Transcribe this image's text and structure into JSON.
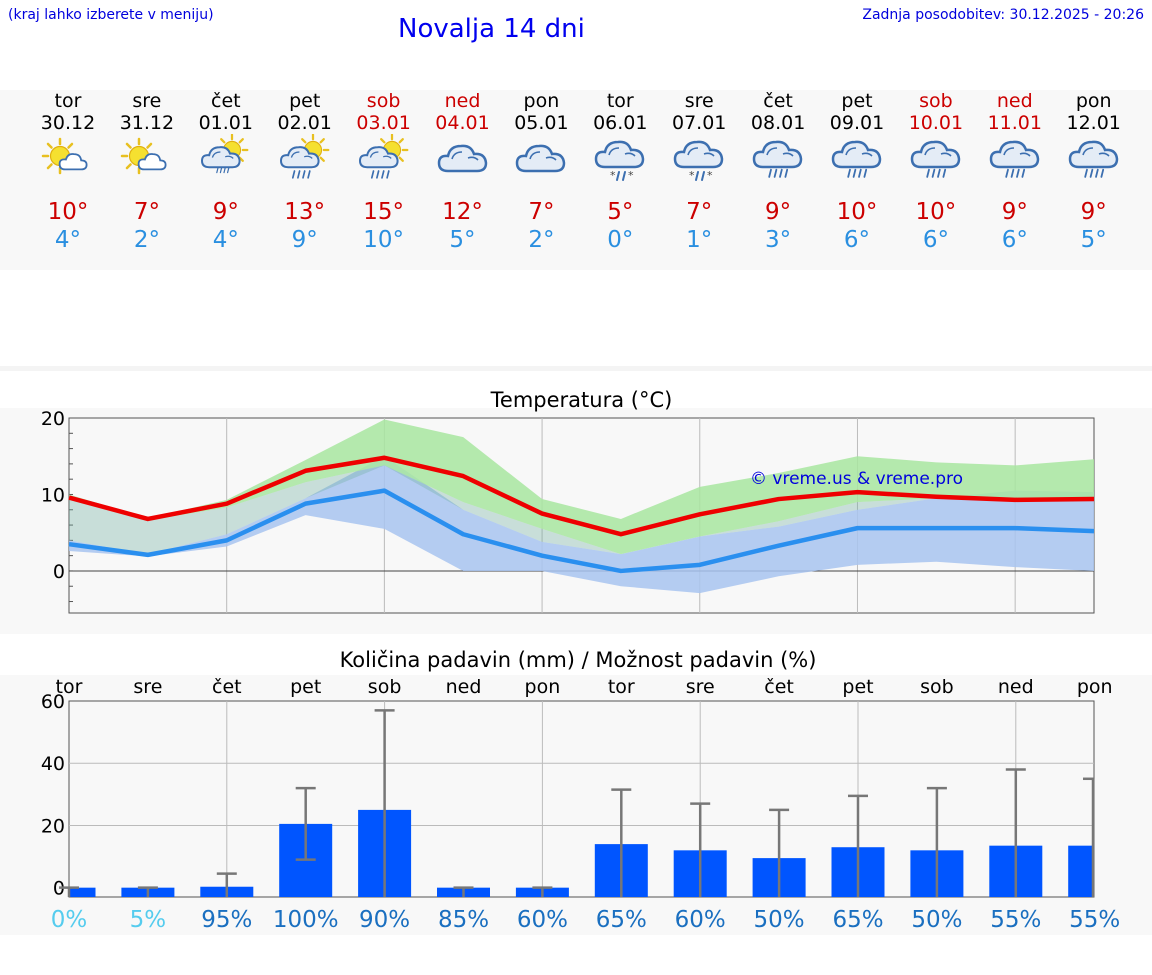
{
  "header": {
    "menu_hint": "(kraj lahko izberete v meniju)",
    "title": "Novalja 14 dni",
    "updated": "Zadnja posodobitev: 30.12.2025 - 20:26"
  },
  "colors": {
    "tmax": "#cc0000",
    "tmin": "#2a8fe0",
    "maxline": "#ee0000",
    "minline": "#2a8fef",
    "maxband": "#a8e6a0",
    "minband": "#a8c4f0",
    "bar": "#0055ff",
    "prob_low": "#55ccee",
    "prob_high": "#1a6fc0"
  },
  "days": [
    {
      "name": "tor",
      "date": "30.12",
      "weekend": false,
      "icon": "sun-partly-cloudy-icon",
      "tmax": "10°",
      "tmin": "4°"
    },
    {
      "name": "sre",
      "date": "31.12",
      "weekend": false,
      "icon": "sun-partly-cloudy-icon",
      "tmax": "7°",
      "tmin": "2°"
    },
    {
      "name": "čet",
      "date": "01.01",
      "weekend": false,
      "icon": "sun-cloud-light-rain-icon",
      "tmax": "9°",
      "tmin": "4°"
    },
    {
      "name": "pet",
      "date": "02.01",
      "weekend": false,
      "icon": "sun-cloud-rain-icon",
      "tmax": "13°",
      "tmin": "9°"
    },
    {
      "name": "sob",
      "date": "03.01",
      "weekend": true,
      "icon": "sun-cloud-rain-icon",
      "tmax": "15°",
      "tmin": "10°"
    },
    {
      "name": "ned",
      "date": "04.01",
      "weekend": true,
      "icon": "cloudy-icon",
      "tmax": "12°",
      "tmin": "5°"
    },
    {
      "name": "pon",
      "date": "05.01",
      "weekend": false,
      "icon": "cloudy-icon",
      "tmax": "7°",
      "tmin": "2°"
    },
    {
      "name": "tor",
      "date": "06.01",
      "weekend": false,
      "icon": "cloud-sleet-icon",
      "tmax": "5°",
      "tmin": "0°"
    },
    {
      "name": "sre",
      "date": "07.01",
      "weekend": false,
      "icon": "cloud-sleet-icon",
      "tmax": "7°",
      "tmin": "1°"
    },
    {
      "name": "čet",
      "date": "08.01",
      "weekend": false,
      "icon": "cloud-rain-icon",
      "tmax": "9°",
      "tmin": "3°"
    },
    {
      "name": "pet",
      "date": "09.01",
      "weekend": false,
      "icon": "cloud-rain-icon",
      "tmax": "10°",
      "tmin": "6°"
    },
    {
      "name": "sob",
      "date": "10.01",
      "weekend": true,
      "icon": "cloud-rain-icon",
      "tmax": "10°",
      "tmin": "6°"
    },
    {
      "name": "ned",
      "date": "11.01",
      "weekend": true,
      "icon": "cloud-rain-icon",
      "tmax": "9°",
      "tmin": "6°"
    },
    {
      "name": "pon",
      "date": "12.01",
      "weekend": false,
      "icon": "cloud-rain-icon",
      "tmax": "9°",
      "tmin": "5°"
    }
  ],
  "chart_data": [
    {
      "type": "line",
      "title": "Temperatura (°C)",
      "watermark": "© vreme.us & vreme.pro",
      "ylim": [
        -5.5,
        20
      ],
      "yticks": [
        "20",
        "10",
        "0"
      ],
      "ytick_values": [
        20,
        10,
        0
      ],
      "x": [
        0,
        1,
        2,
        3,
        4,
        5,
        6,
        7,
        8,
        9,
        10,
        11,
        12,
        13
      ],
      "series": [
        {
          "name": "max",
          "values": [
            9.6,
            6.8,
            8.8,
            13.1,
            14.8,
            12.4,
            7.5,
            4.8,
            7.4,
            9.4,
            10.3,
            9.7,
            9.3,
            9.4
          ]
        },
        {
          "name": "min",
          "values": [
            3.5,
            2.1,
            4.0,
            8.8,
            10.5,
            4.8,
            2.0,
            0.0,
            0.8,
            3.3,
            5.6,
            5.6,
            5.6,
            5.2
          ]
        }
      ],
      "bands": [
        {
          "name": "max_range",
          "low": [
            9.3,
            6.6,
            8.3,
            11.6,
            13.8,
            9.0,
            5.5,
            2.2,
            4.5,
            6.5,
            9.0,
            9.5,
            9.5,
            9.6
          ],
          "high": [
            10.0,
            6.9,
            9.3,
            14.5,
            19.8,
            17.5,
            9.4,
            6.8,
            11.0,
            12.8,
            15.0,
            14.2,
            13.8,
            14.6
          ]
        },
        {
          "name": "min_range",
          "low": [
            2.6,
            1.9,
            3.2,
            7.3,
            5.5,
            0.0,
            0.0,
            -2.0,
            -2.9,
            -0.7,
            0.8,
            1.2,
            0.5,
            0.0
          ],
          "high": [
            4.0,
            2.2,
            4.8,
            9.5,
            15.0,
            8.0,
            3.8,
            2.2,
            4.5,
            5.8,
            8.0,
            9.5,
            10.5,
            10.3
          ]
        }
      ]
    },
    {
      "type": "bar",
      "title": "Količina padavin (mm) / Možnost padavin (%)",
      "categories": [
        "tor",
        "sre",
        "čet",
        "pet",
        "sob",
        "ned",
        "pon",
        "tor",
        "sre",
        "čet",
        "pet",
        "sob",
        "ned",
        "pon"
      ],
      "ylim": [
        -3,
        60
      ],
      "yticks": [
        "60",
        "40",
        "20",
        "0"
      ],
      "ytick_values": [
        60,
        40,
        20,
        0
      ],
      "values": [
        0,
        0,
        0.3,
        20.5,
        25,
        0,
        0,
        14,
        12,
        9.5,
        13,
        12,
        13.5,
        13.5
      ],
      "error_low": [
        0,
        0,
        0,
        9,
        0,
        0,
        0,
        0,
        0,
        0,
        0,
        0,
        0,
        0
      ],
      "error_high": [
        0,
        0,
        4.5,
        32,
        57,
        0,
        0,
        31.5,
        27,
        25,
        29.5,
        32,
        38,
        35
      ],
      "probability": [
        "0%",
        "5%",
        "95%",
        "100%",
        "90%",
        "85%",
        "60%",
        "65%",
        "60%",
        "50%",
        "65%",
        "50%",
        "55%",
        "55%"
      ]
    }
  ]
}
